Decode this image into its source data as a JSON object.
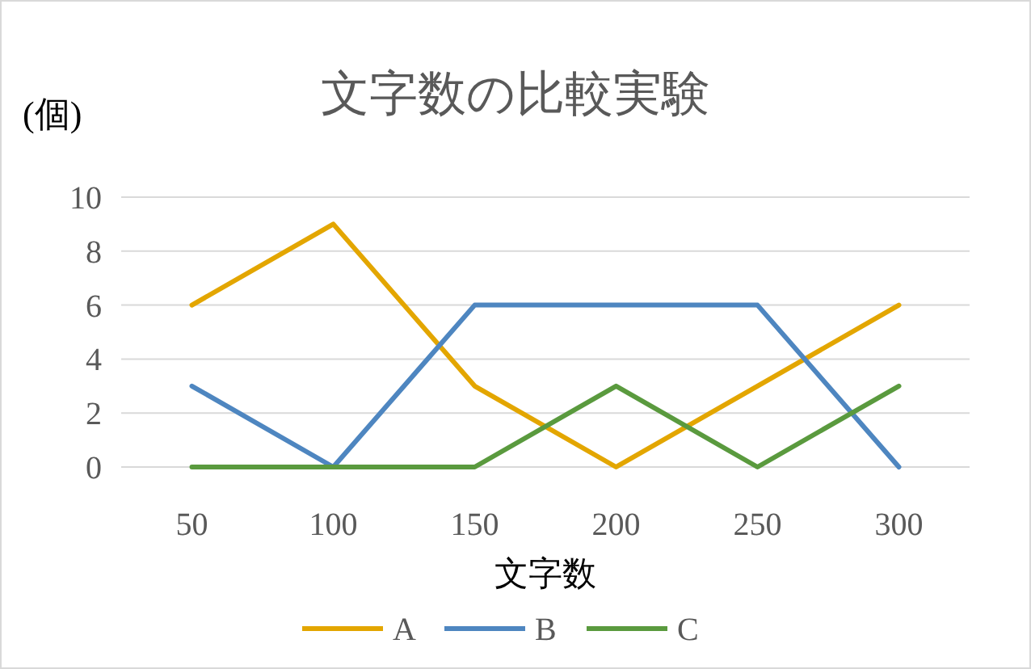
{
  "chart_data": {
    "type": "line",
    "title": "文字数の比較実験",
    "ylabel": "(個)",
    "xlabel": "文字数",
    "categories": [
      "50",
      "100",
      "150",
      "200",
      "250",
      "300"
    ],
    "series": [
      {
        "name": "A",
        "color": "#e3a600",
        "values": [
          6,
          9,
          3,
          0,
          3,
          6
        ]
      },
      {
        "name": "B",
        "color": "#4e86c0",
        "values": [
          3,
          0,
          6,
          6,
          6,
          0
        ]
      },
      {
        "name": "C",
        "color": "#5a9a3e",
        "values": [
          0,
          0,
          0,
          3,
          0,
          3
        ]
      }
    ],
    "ylim": [
      0,
      10
    ],
    "yticks": [
      0,
      2,
      4,
      6,
      8,
      10
    ],
    "grid": "y",
    "legend": "bottom"
  }
}
